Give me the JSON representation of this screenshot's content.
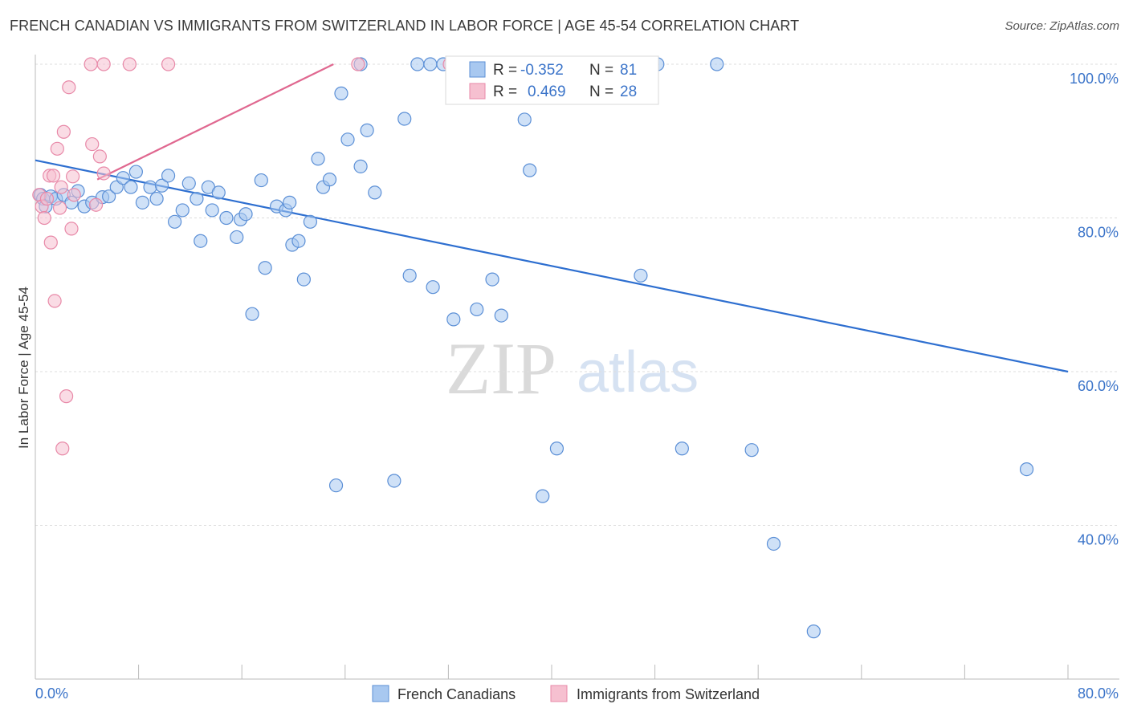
{
  "header": {
    "title": "FRENCH CANADIAN VS IMMIGRANTS FROM SWITZERLAND IN LABOR FORCE | AGE 45-54 CORRELATION CHART",
    "source": "Source: ZipAtlas.com"
  },
  "watermark": {
    "zip": "ZIP",
    "atlas": "atlas"
  },
  "colors": {
    "blue_fill": "#a8c8f0",
    "blue_stroke": "#5b8fd6",
    "blue_line": "#2e6fd0",
    "pink_fill": "#f6c0d0",
    "pink_stroke": "#e889a8",
    "pink_line": "#e06890",
    "grid": "#dddddd",
    "tick_text": "#3b74c9"
  },
  "legend": {
    "rows": [
      {
        "r_label": "R =",
        "r_value": "-0.352",
        "n_label": "N =",
        "n_value": "81"
      },
      {
        "r_label": "R =",
        "r_value": "0.469",
        "n_label": "N =",
        "n_value": "28"
      }
    ]
  },
  "chart_data": {
    "type": "scatter",
    "xlabel": "",
    "ylabel": "In Labor Force | Age 45-54",
    "xlim": [
      0,
      80
    ],
    "ylim": [
      20,
      100
    ],
    "x_tick_labels": [
      "0.0%",
      "80.0%"
    ],
    "y_ticks": [
      40,
      60,
      80,
      100
    ],
    "y_tick_labels": [
      "40.0%",
      "60.0%",
      "80.0%",
      "100.0%"
    ],
    "grid": true,
    "legend_placement": "top-center",
    "series": [
      {
        "name": "French Canadians",
        "color": "#5b8fd6",
        "trend": {
          "x": [
            0,
            80
          ],
          "y": [
            87.5,
            60.0
          ]
        },
        "points": [
          [
            0.4,
            83.0
          ],
          [
            0.6,
            82.5
          ],
          [
            0.8,
            81.5
          ],
          [
            1.2,
            82.8
          ],
          [
            1.6,
            82.5
          ],
          [
            2.2,
            83.0
          ],
          [
            2.8,
            82.0
          ],
          [
            3.3,
            83.5
          ],
          [
            3.8,
            81.5
          ],
          [
            4.4,
            82.0
          ],
          [
            5.2,
            82.7
          ],
          [
            5.7,
            82.8
          ],
          [
            6.3,
            84.0
          ],
          [
            6.8,
            85.2
          ],
          [
            7.4,
            84.0
          ],
          [
            7.8,
            86.0
          ],
          [
            8.3,
            82.0
          ],
          [
            8.9,
            84.0
          ],
          [
            9.4,
            82.5
          ],
          [
            9.8,
            84.2
          ],
          [
            10.3,
            85.5
          ],
          [
            10.8,
            79.5
          ],
          [
            11.4,
            81.0
          ],
          [
            11.9,
            84.5
          ],
          [
            12.5,
            82.5
          ],
          [
            12.8,
            77.0
          ],
          [
            13.4,
            84.0
          ],
          [
            13.7,
            81.0
          ],
          [
            14.2,
            83.3
          ],
          [
            14.8,
            80.0
          ],
          [
            15.6,
            77.5
          ],
          [
            15.9,
            79.8
          ],
          [
            16.3,
            80.5
          ],
          [
            17.5,
            84.9
          ],
          [
            17.8,
            73.5
          ],
          [
            16.8,
            67.5
          ],
          [
            18.7,
            81.5
          ],
          [
            19.4,
            81.0
          ],
          [
            19.7,
            82.0
          ],
          [
            19.9,
            76.5
          ],
          [
            20.4,
            77.0
          ],
          [
            20.8,
            72.0
          ],
          [
            21.3,
            79.5
          ],
          [
            21.9,
            87.7
          ],
          [
            22.3,
            84.0
          ],
          [
            22.8,
            85.0
          ],
          [
            23.7,
            96.2
          ],
          [
            24.2,
            90.2
          ],
          [
            25.2,
            100.0
          ],
          [
            25.2,
            86.7
          ],
          [
            25.7,
            91.4
          ],
          [
            26.3,
            83.3
          ],
          [
            28.6,
            92.9
          ],
          [
            29.0,
            72.5
          ],
          [
            29.6,
            100.0
          ],
          [
            30.6,
            100.0
          ],
          [
            30.8,
            71.0
          ],
          [
            32.4,
            66.8
          ],
          [
            33.0,
            100.0
          ],
          [
            34.2,
            68.1
          ],
          [
            35.4,
            72.0
          ],
          [
            36.1,
            67.3
          ],
          [
            37.7,
            100.0
          ],
          [
            37.9,
            92.8
          ],
          [
            38.3,
            86.2
          ],
          [
            40.4,
            50.0
          ],
          [
            39.3,
            43.8
          ],
          [
            44.2,
            100.0
          ],
          [
            46.9,
            72.5
          ],
          [
            48.2,
            100.0
          ],
          [
            50.1,
            50.0
          ],
          [
            52.8,
            100.0
          ],
          [
            55.5,
            49.8
          ],
          [
            57.2,
            37.6
          ],
          [
            60.3,
            26.2
          ],
          [
            76.8,
            47.3
          ],
          [
            23.3,
            45.2
          ],
          [
            27.8,
            45.8
          ],
          [
            44.1,
            100.0
          ],
          [
            35.5,
            100.0
          ],
          [
            31.6,
            100.0
          ]
        ]
      },
      {
        "name": "Immigrants from Switzerland",
        "color": "#e889a8",
        "trend": {
          "x": [
            4.8,
            23.1
          ],
          "y": [
            85.0,
            100.0
          ]
        },
        "points": [
          [
            0.3,
            83.0
          ],
          [
            0.5,
            81.5
          ],
          [
            0.7,
            80.0
          ],
          [
            0.9,
            82.5
          ],
          [
            1.1,
            85.5
          ],
          [
            1.2,
            76.8
          ],
          [
            1.4,
            85.5
          ],
          [
            1.5,
            69.2
          ],
          [
            1.7,
            89.0
          ],
          [
            1.9,
            81.3
          ],
          [
            2.0,
            84.0
          ],
          [
            2.2,
            91.2
          ],
          [
            2.4,
            56.8
          ],
          [
            2.6,
            97.0
          ],
          [
            2.8,
            78.6
          ],
          [
            2.9,
            85.4
          ],
          [
            3.0,
            83.0
          ],
          [
            4.4,
            89.6
          ],
          [
            4.7,
            81.7
          ],
          [
            5.0,
            88.0
          ],
          [
            5.3,
            85.8
          ],
          [
            4.3,
            100.0
          ],
          [
            5.3,
            100.0
          ],
          [
            7.3,
            100.0
          ],
          [
            10.3,
            100.0
          ],
          [
            25.0,
            100.0
          ],
          [
            32.1,
            100.0
          ],
          [
            2.1,
            50.0
          ]
        ]
      }
    ]
  },
  "bottom_legend": {
    "items": [
      {
        "label": "French Canadians"
      },
      {
        "label": "Immigrants from Switzerland"
      }
    ]
  }
}
